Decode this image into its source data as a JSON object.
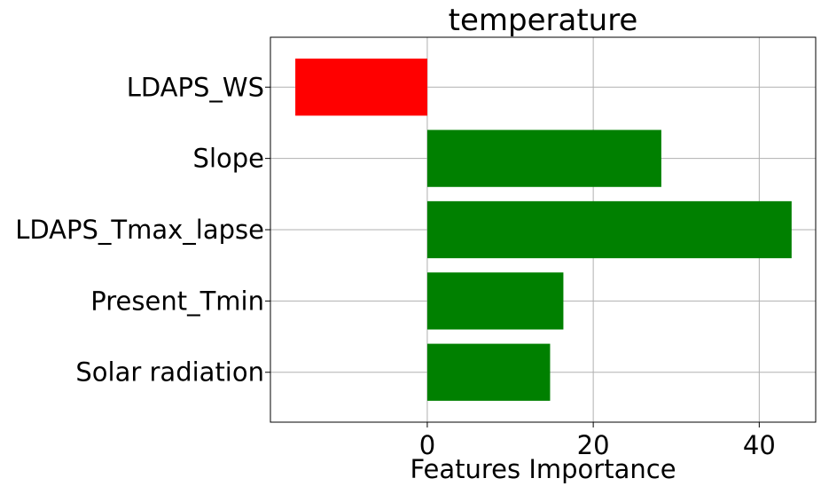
{
  "chart_data": {
    "type": "bar",
    "orientation": "horizontal",
    "title": "temperature",
    "xlabel": "Features Importance",
    "ylabel": "",
    "categories": [
      "LDAPS_WS",
      "Slope",
      "LDAPS_Tmax_lapse",
      "Present_Tmin",
      "Solar radiation"
    ],
    "values": [
      -15.9,
      28.2,
      43.9,
      16.4,
      14.8
    ],
    "colors": [
      "#ff0000",
      "#008000",
      "#008000",
      "#008000",
      "#008000"
    ],
    "positive_color": "#008000",
    "negative_color": "#ff0000",
    "xlim": [
      -18.9,
      46.8
    ],
    "xticks": [
      0,
      20,
      40
    ],
    "xtick_labels": [
      "0",
      "20",
      "40"
    ],
    "grid": true
  }
}
